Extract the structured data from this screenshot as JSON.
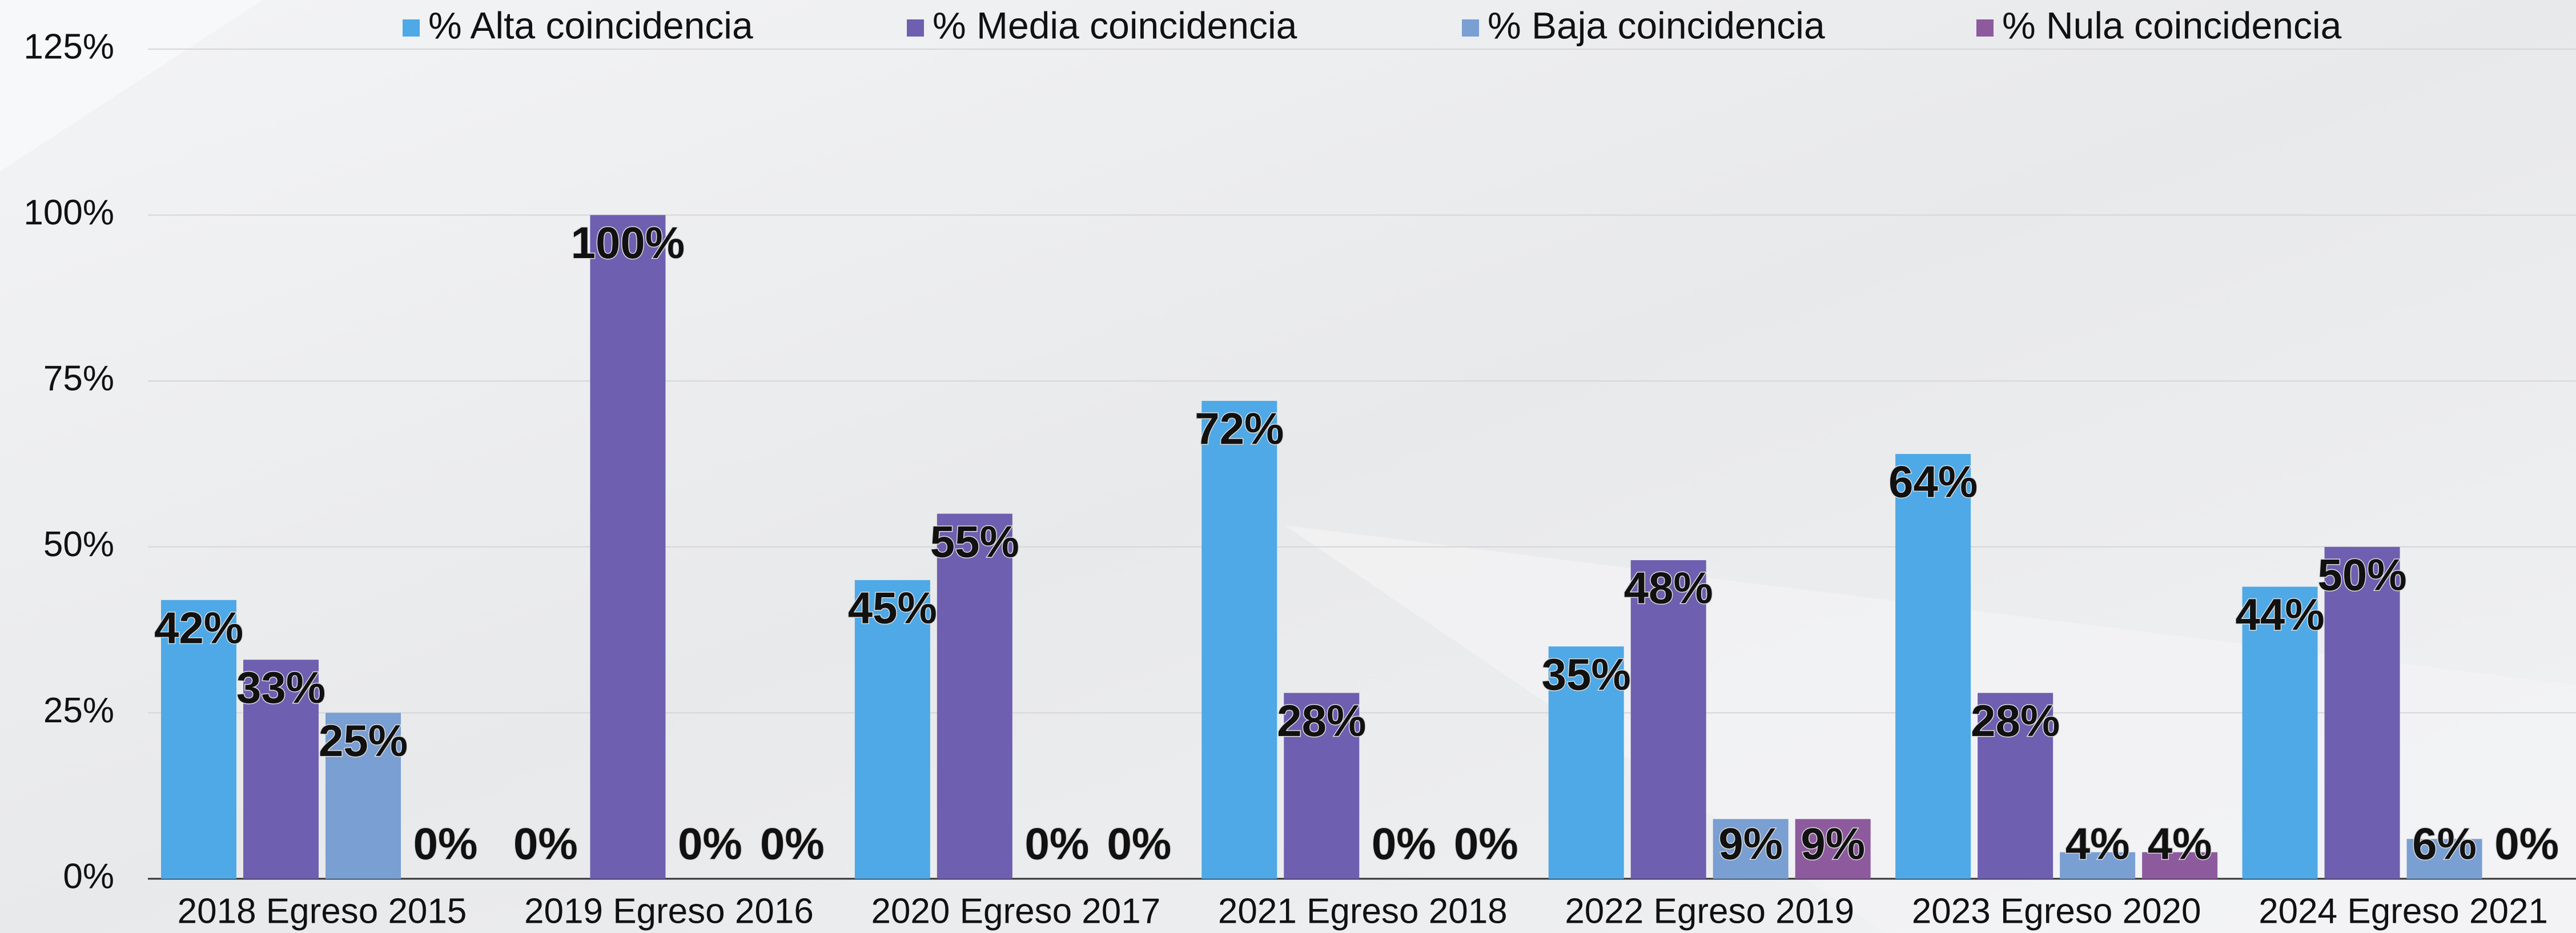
{
  "chart_data": {
    "type": "bar",
    "categories": [
      "2018 Egreso 2015",
      "2019 Egreso 2016",
      "2020 Egreso 2017",
      "2021 Egreso 2018",
      "2022 Egreso 2019",
      "2023 Egreso 2020",
      "2024 Egreso 2021"
    ],
    "series": [
      {
        "name": "% Alta coincidencia",
        "color": "#4ea9e6",
        "values": [
          42,
          0,
          45,
          72,
          35,
          64,
          44
        ],
        "value_labels": [
          "42%",
          "0%",
          "45%",
          "72%",
          "35%",
          "64%",
          "44%"
        ]
      },
      {
        "name": "% Media  coincidencia",
        "color": "#6f5fb0",
        "values": [
          33,
          100,
          55,
          28,
          48,
          28,
          50
        ],
        "value_labels": [
          "33%",
          "100%",
          "55%",
          "28%",
          "48%",
          "28%",
          "50%"
        ]
      },
      {
        "name": "% Baja coincidencia",
        "color": "#7a9fd2",
        "values": [
          25,
          0,
          0,
          0,
          9,
          4,
          6
        ],
        "value_labels": [
          "25%",
          "0%",
          "0%",
          "0%",
          "9%",
          "4%",
          "6%"
        ]
      },
      {
        "name": "% Nula coincidencia",
        "color": "#8d5a9e",
        "values": [
          0,
          0,
          0,
          0,
          9,
          4,
          0
        ],
        "value_labels": [
          "0%",
          "0%",
          "0%",
          "0%",
          "9%",
          "4%",
          "0%"
        ]
      }
    ],
    "ylim": [
      0,
      125
    ],
    "yticks": [
      {
        "value": 0,
        "label": "0%"
      },
      {
        "value": 25,
        "label": "25%"
      },
      {
        "value": 50,
        "label": "50%"
      },
      {
        "value": 75,
        "label": "75%"
      },
      {
        "value": 100,
        "label": "100%"
      },
      {
        "value": 125,
        "label": "125%"
      }
    ],
    "grid": true
  }
}
